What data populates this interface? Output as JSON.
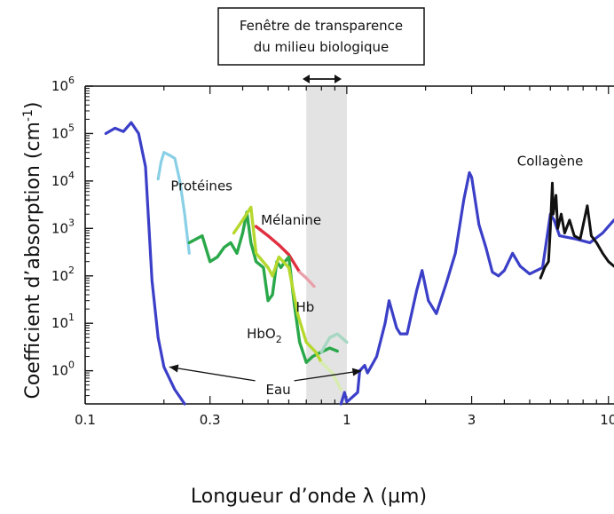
{
  "chart_data": {
    "type": "line",
    "title": "",
    "callout_box": [
      "Fenêtre de transparence",
      "du milieu biologique"
    ],
    "xlabel": "Longueur d’onde λ (µm)",
    "ylabel": "Coefficient d’absorption (cm",
    "ylabel_sup": "-1",
    "ylabel_close": ")",
    "x_scale": "log",
    "y_scale": "log",
    "xlim": [
      0.1,
      10.5
    ],
    "ylim": [
      0.2,
      1000000
    ],
    "x_ticks": [
      {
        "value": 0.1,
        "label": "0.1"
      },
      {
        "value": 0.3,
        "label": "0.3"
      },
      {
        "value": 1,
        "label": "1"
      },
      {
        "value": 3,
        "label": "3"
      },
      {
        "value": 10,
        "label": "10"
      }
    ],
    "y_ticks": [
      {
        "exp": 0,
        "base": "10",
        "sup": "0"
      },
      {
        "exp": 1,
        "base": "10",
        "sup": "1"
      },
      {
        "exp": 2,
        "base": "10",
        "sup": "2"
      },
      {
        "exp": 3,
        "base": "10",
        "sup": "3"
      },
      {
        "exp": 4,
        "base": "10",
        "sup": "4"
      },
      {
        "exp": 5,
        "base": "10",
        "sup": "5"
      },
      {
        "exp": 6,
        "base": "10",
        "sup": "6"
      }
    ],
    "grid": false,
    "shaded_window": [
      0.7,
      1.0
    ],
    "labels": {
      "proteines": "Protéines",
      "melanine": "Mélanine",
      "hb": "Hb",
      "hbo2_base": "HbO",
      "hbo2_sub": "2",
      "eau": "Eau",
      "collagene": "Collagène"
    },
    "series": [
      {
        "key": "water",
        "color": "#3b3fc8",
        "points": [
          [
            0.12,
            100000
          ],
          [
            0.13,
            130000
          ],
          [
            0.14,
            110000
          ],
          [
            0.15,
            170000
          ],
          [
            0.16,
            100000
          ],
          [
            0.17,
            20000
          ],
          [
            0.18,
            80
          ],
          [
            0.19,
            5
          ],
          [
            0.2,
            1.2
          ],
          [
            0.22,
            0.4
          ],
          [
            0.24,
            0.2
          ]
        ]
      },
      {
        "key": "water_ir",
        "color": "#3b3fc8",
        "points": [
          [
            0.95,
            0.2
          ],
          [
            0.98,
            0.35
          ],
          [
            1.0,
            0.22
          ],
          [
            1.1,
            0.35
          ],
          [
            1.12,
            1.0
          ],
          [
            1.17,
            1.3
          ],
          [
            1.2,
            0.9
          ],
          [
            1.3,
            2
          ],
          [
            1.4,
            10
          ],
          [
            1.45,
            30
          ],
          [
            1.55,
            8
          ],
          [
            1.6,
            6
          ],
          [
            1.7,
            6
          ],
          [
            1.85,
            50
          ],
          [
            1.94,
            130
          ],
          [
            2.05,
            30
          ],
          [
            2.2,
            16
          ],
          [
            2.4,
            70
          ],
          [
            2.6,
            300
          ],
          [
            2.8,
            4000
          ],
          [
            2.94,
            15000
          ],
          [
            3.0,
            12000
          ],
          [
            3.2,
            1200
          ],
          [
            3.4,
            400
          ],
          [
            3.6,
            120
          ],
          [
            3.8,
            100
          ],
          [
            4.0,
            130
          ],
          [
            4.3,
            300
          ],
          [
            4.6,
            160
          ],
          [
            5.0,
            110
          ],
          [
            5.6,
            150
          ],
          [
            6.0,
            2000
          ],
          [
            6.2,
            1500
          ],
          [
            6.5,
            700
          ],
          [
            7.5,
            600
          ],
          [
            8.5,
            500
          ],
          [
            9.5,
            800
          ],
          [
            10.5,
            1500
          ]
        ]
      },
      {
        "key": "proteins",
        "color": "#89d0e6",
        "points": [
          [
            0.19,
            11000
          ],
          [
            0.195,
            25000
          ],
          [
            0.2,
            40000
          ],
          [
            0.21,
            35000
          ],
          [
            0.22,
            30000
          ],
          [
            0.23,
            10000
          ],
          [
            0.24,
            2000
          ],
          [
            0.25,
            300
          ]
        ]
      },
      {
        "key": "collagen",
        "color": "#111111",
        "points": [
          [
            5.5,
            90
          ],
          [
            5.7,
            150
          ],
          [
            5.9,
            200
          ],
          [
            6.0,
            1000
          ],
          [
            6.1,
            9000
          ],
          [
            6.15,
            2000
          ],
          [
            6.3,
            5000
          ],
          [
            6.4,
            1000
          ],
          [
            6.6,
            2000
          ],
          [
            6.8,
            800
          ],
          [
            7.1,
            1500
          ],
          [
            7.4,
            700
          ],
          [
            7.8,
            600
          ],
          [
            8.3,
            3000
          ],
          [
            8.6,
            700
          ],
          [
            9.0,
            500
          ],
          [
            9.5,
            300
          ],
          [
            10.0,
            200
          ],
          [
            10.5,
            160
          ]
        ]
      },
      {
        "key": "melanine",
        "color": "#e03040",
        "points": [
          [
            0.45,
            1100
          ],
          [
            0.5,
            700
          ],
          [
            0.55,
            450
          ],
          [
            0.6,
            280
          ],
          [
            0.66,
            120
          ]
        ]
      },
      {
        "key": "melanine_fade",
        "color": "#eaa0aa",
        "points": [
          [
            0.66,
            120
          ],
          [
            0.7,
            90
          ],
          [
            0.75,
            60
          ]
        ]
      },
      {
        "key": "hbo2",
        "color": "#2aa84a",
        "points": [
          [
            0.25,
            500
          ],
          [
            0.28,
            700
          ],
          [
            0.3,
            200
          ],
          [
            0.32,
            250
          ],
          [
            0.34,
            400
          ],
          [
            0.36,
            500
          ],
          [
            0.38,
            300
          ],
          [
            0.4,
            800
          ],
          [
            0.415,
            2200
          ],
          [
            0.43,
            500
          ],
          [
            0.45,
            200
          ],
          [
            0.48,
            150
          ],
          [
            0.5,
            30
          ],
          [
            0.52,
            40
          ],
          [
            0.54,
            200
          ],
          [
            0.56,
            150
          ],
          [
            0.58,
            200
          ],
          [
            0.6,
            250
          ],
          [
            0.63,
            25
          ],
          [
            0.66,
            4
          ],
          [
            0.7,
            1.5
          ],
          [
            0.74,
            2
          ],
          [
            0.8,
            2.5
          ],
          [
            0.86,
            3
          ],
          [
            0.92,
            2.6
          ]
        ]
      },
      {
        "key": "hb",
        "color": "#b6d82e",
        "points": [
          [
            0.37,
            800
          ],
          [
            0.4,
            1500
          ],
          [
            0.43,
            2800
          ],
          [
            0.45,
            300
          ],
          [
            0.5,
            150
          ],
          [
            0.52,
            100
          ],
          [
            0.55,
            250
          ],
          [
            0.6,
            150
          ],
          [
            0.65,
            15
          ],
          [
            0.7,
            4
          ],
          [
            0.76,
            2.5
          ],
          [
            0.8,
            1.5
          ]
        ]
      },
      {
        "key": "hb_fade",
        "color": "#d7ecae",
        "points": [
          [
            0.8,
            1.5
          ],
          [
            0.88,
            0.9
          ],
          [
            0.95,
            0.4
          ]
        ]
      },
      {
        "key": "hbo2_fade",
        "color": "#a7d7c3",
        "points": [
          [
            0.8,
            2.5
          ],
          [
            0.86,
            5
          ],
          [
            0.92,
            6
          ],
          [
            1.0,
            4
          ]
        ]
      }
    ]
  }
}
